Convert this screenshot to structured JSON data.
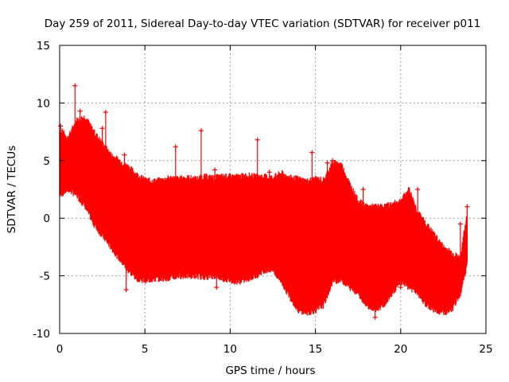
{
  "chart_data": {
    "type": "scatter",
    "title": "Day 259 of 2011, Sidereal Day-to-day VTEC variation (SDTVAR) for receiver p011",
    "xlabel": "GPS time / hours",
    "ylabel": "SDTVAR / TECUs",
    "xlim": [
      0,
      25
    ],
    "ylim": [
      -10,
      15
    ],
    "xticks": [
      0,
      5,
      10,
      15,
      20,
      25
    ],
    "yticks": [
      -10,
      -5,
      0,
      5,
      10,
      15
    ],
    "xtick_labels": [
      "0",
      "5",
      "10",
      "15",
      "20",
      "25"
    ],
    "ytick_labels": [
      "-10",
      "-5",
      "0",
      "5",
      "10",
      "15"
    ],
    "grid": true,
    "series_color": "#ff0000",
    "marker": "plus",
    "envelope": {
      "hours": [
        0.0,
        0.5,
        1.0,
        1.5,
        2.0,
        2.5,
        3.0,
        3.5,
        4.0,
        4.5,
        5.0,
        5.5,
        6.0,
        6.5,
        7.0,
        7.5,
        8.0,
        8.5,
        9.0,
        9.5,
        10.0,
        10.5,
        11.0,
        11.5,
        12.0,
        12.5,
        13.0,
        13.5,
        14.0,
        14.5,
        15.0,
        15.5,
        16.0,
        16.5,
        17.0,
        17.5,
        18.0,
        18.5,
        19.0,
        19.5,
        20.0,
        20.5,
        21.0,
        21.5,
        22.0,
        22.5,
        23.0,
        23.5,
        23.9
      ],
      "upper": [
        7.5,
        7.0,
        8.5,
        8.8,
        7.5,
        6.5,
        5.5,
        5.0,
        4.5,
        3.8,
        3.3,
        3.2,
        3.3,
        3.5,
        3.4,
        3.5,
        3.4,
        3.6,
        3.5,
        3.6,
        3.6,
        3.6,
        3.7,
        3.6,
        3.6,
        3.5,
        3.9,
        3.5,
        3.4,
        3.2,
        3.4,
        3.3,
        4.8,
        4.7,
        3.0,
        1.5,
        1.0,
        1.0,
        1.0,
        1.2,
        1.5,
        2.5,
        0.5,
        -0.5,
        -1.5,
        -2.5,
        -3.0,
        -3.5,
        0.5
      ],
      "lower": [
        2.0,
        2.5,
        2.0,
        1.0,
        -0.5,
        -1.5,
        -2.5,
        -3.5,
        -4.5,
        -5.2,
        -5.4,
        -5.3,
        -5.2,
        -5.2,
        -5.0,
        -5.0,
        -5.0,
        -5.1,
        -5.0,
        -5.2,
        -5.4,
        -5.5,
        -5.3,
        -5.0,
        -4.5,
        -4.5,
        -5.5,
        -6.8,
        -8.0,
        -8.2,
        -8.0,
        -7.5,
        -5.5,
        -5.3,
        -6.0,
        -6.5,
        -7.5,
        -8.0,
        -7.5,
        -6.5,
        -5.5,
        -6.0,
        -6.5,
        -7.5,
        -8.0,
        -8.2,
        -8.0,
        -6.5,
        -4.0
      ]
    },
    "spikes": [
      {
        "x": 0.9,
        "y": 11.5
      },
      {
        "x": 1.2,
        "y": 9.3
      },
      {
        "x": 2.7,
        "y": 9.2
      },
      {
        "x": 2.5,
        "y": 7.8
      },
      {
        "x": 3.8,
        "y": 5.5
      },
      {
        "x": 6.8,
        "y": 6.2
      },
      {
        "x": 8.3,
        "y": 7.6
      },
      {
        "x": 9.1,
        "y": 4.2
      },
      {
        "x": 11.6,
        "y": 6.8
      },
      {
        "x": 14.8,
        "y": 5.7
      },
      {
        "x": 16.0,
        "y": 5.0
      },
      {
        "x": 3.9,
        "y": -6.2
      },
      {
        "x": 9.2,
        "y": -6.0
      },
      {
        "x": 18.5,
        "y": -8.6
      },
      {
        "x": 20.0,
        "y": -6.0
      },
      {
        "x": 23.9,
        "y": 1.0
      },
      {
        "x": 23.5,
        "y": -0.5
      },
      {
        "x": 0.05,
        "y": 8.0
      },
      {
        "x": 0.15,
        "y": 7.6
      },
      {
        "x": 1.8,
        "y": 4.0
      },
      {
        "x": 12.3,
        "y": 4.0
      },
      {
        "x": 15.7,
        "y": 4.8
      },
      {
        "x": 21.0,
        "y": 2.5
      },
      {
        "x": 17.8,
        "y": 2.5
      }
    ]
  }
}
